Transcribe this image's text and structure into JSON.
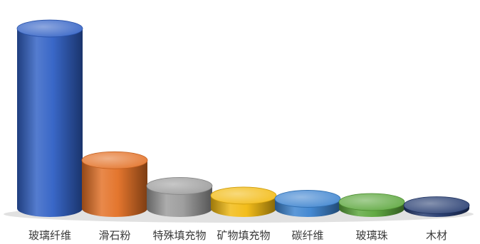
{
  "chart_data": {
    "type": "bar",
    "style": "3d-cylinder",
    "title": "",
    "xlabel": "",
    "ylabel": "",
    "grid": false,
    "legend": "none",
    "ylim": [
      0,
      60
    ],
    "categories": [
      "玻璃纤维",
      "滑石粉",
      "特殊填充物",
      "矿物填充物",
      "碳纤维",
      "玻璃珠",
      "木材"
    ],
    "values": [
      56,
      15,
      7,
      4,
      3,
      2,
      1
    ],
    "colors": [
      "#2f5fc4",
      "#e36f23",
      "#9a9a9a",
      "#f2b90f",
      "#3a82cf",
      "#5aa63a",
      "#22386e"
    ]
  }
}
